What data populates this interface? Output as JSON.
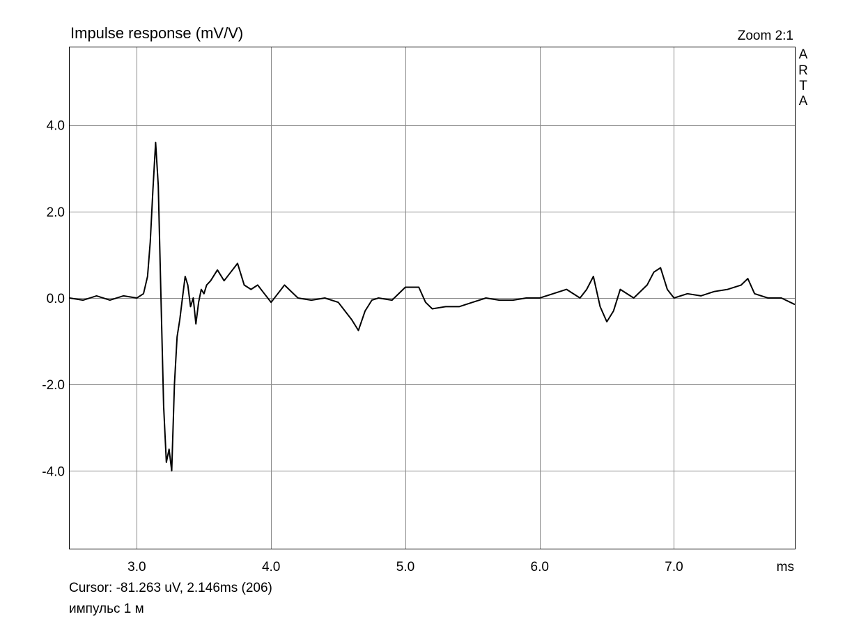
{
  "chart_data": {
    "type": "line",
    "title": "Impulse response (mV/V)",
    "zoom_label": "Zoom 2:1",
    "brand": [
      "A",
      "R",
      "T",
      "A"
    ],
    "xlabel": "ms",
    "ylabel": "",
    "xlim": [
      2.5,
      7.9
    ],
    "ylim": [
      -5.8,
      5.8
    ],
    "x_ticks": [
      3.0,
      4.0,
      5.0,
      6.0,
      7.0
    ],
    "x_tick_labels": [
      "3.0",
      "4.0",
      "5.0",
      "6.0",
      "7.0"
    ],
    "y_ticks": [
      4.0,
      2.0,
      0.0,
      -2.0,
      -4.0
    ],
    "y_tick_labels": [
      "4.0",
      "2.0",
      "0.0",
      "-2.0",
      "-4.0"
    ],
    "grid": true,
    "series": [
      {
        "x": [
          2.5,
          2.6,
          2.7,
          2.8,
          2.9,
          3.0,
          3.05,
          3.08,
          3.1,
          3.12,
          3.14,
          3.16,
          3.18,
          3.2,
          3.22,
          3.24,
          3.26,
          3.28,
          3.3,
          3.32,
          3.34,
          3.36,
          3.38,
          3.4,
          3.42,
          3.44,
          3.46,
          3.48,
          3.5,
          3.52,
          3.55,
          3.6,
          3.65,
          3.7,
          3.75,
          3.8,
          3.85,
          3.9,
          3.95,
          4.0,
          4.05,
          4.1,
          4.2,
          4.3,
          4.4,
          4.5,
          4.55,
          4.6,
          4.65,
          4.7,
          4.75,
          4.8,
          4.9,
          5.0,
          5.1,
          5.15,
          5.2,
          5.3,
          5.4,
          5.5,
          5.6,
          5.7,
          5.8,
          5.9,
          6.0,
          6.1,
          6.2,
          6.3,
          6.35,
          6.4,
          6.45,
          6.5,
          6.55,
          6.6,
          6.7,
          6.8,
          6.85,
          6.9,
          6.95,
          7.0,
          7.1,
          7.2,
          7.3,
          7.4,
          7.5,
          7.55,
          7.6,
          7.7,
          7.8,
          7.9
        ],
        "y": [
          0.0,
          -0.05,
          0.05,
          -0.05,
          0.05,
          0.0,
          0.1,
          0.5,
          1.3,
          2.5,
          3.6,
          2.6,
          0.0,
          -2.5,
          -3.8,
          -3.5,
          -4.0,
          -2.0,
          -0.9,
          -0.5,
          0.0,
          0.5,
          0.3,
          -0.2,
          0.0,
          -0.6,
          -0.1,
          0.2,
          0.1,
          0.3,
          0.4,
          0.65,
          0.4,
          0.6,
          0.8,
          0.3,
          0.2,
          0.3,
          0.1,
          -0.1,
          0.1,
          0.3,
          0.0,
          -0.05,
          0.0,
          -0.1,
          -0.3,
          -0.5,
          -0.75,
          -0.3,
          -0.05,
          0.0,
          -0.05,
          0.25,
          0.25,
          -0.1,
          -0.25,
          -0.2,
          -0.2,
          -0.1,
          0.0,
          -0.05,
          -0.05,
          0.0,
          0.0,
          0.1,
          0.2,
          0.0,
          0.2,
          0.5,
          -0.2,
          -0.55,
          -0.3,
          0.2,
          0.0,
          0.3,
          0.6,
          0.7,
          0.2,
          0.0,
          0.1,
          0.05,
          0.15,
          0.2,
          0.3,
          0.45,
          0.1,
          0.0,
          0.0,
          -0.15
        ]
      }
    ],
    "cursor_text": "Cursor: -81.263 uV, 2.146ms (206)",
    "note_text": "импульс 1 м"
  }
}
